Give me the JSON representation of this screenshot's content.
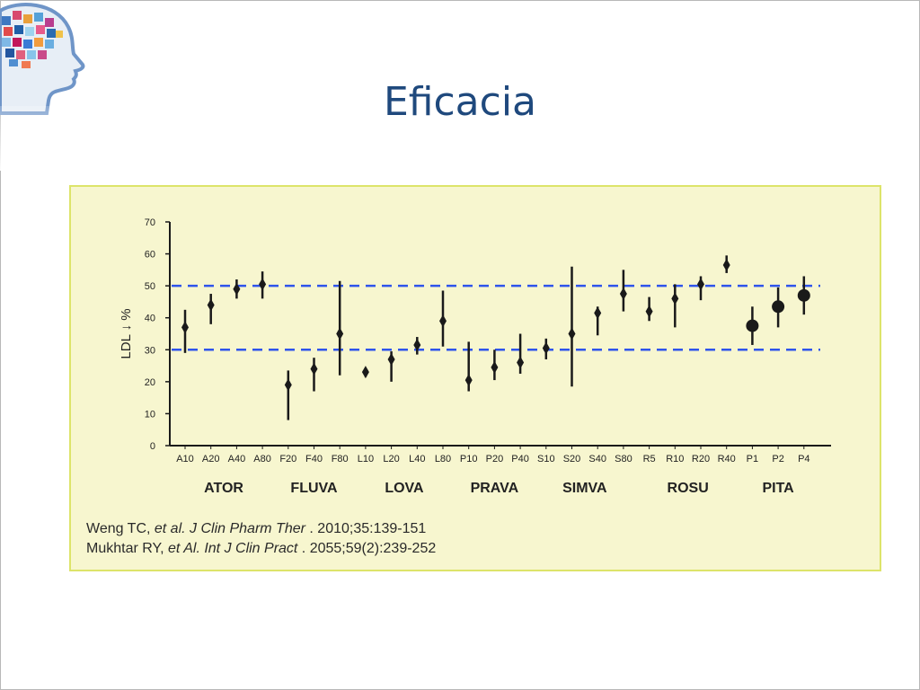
{
  "slide": {
    "title": "Eficacia",
    "logo_icon": "brain-profile-logo"
  },
  "references": [
    {
      "before": "Weng TC, ",
      "italic": "et al. J Clin Pharm Ther",
      "after": " . 2010;35:139-151"
    },
    {
      "before": "Mukhtar RY, ",
      "italic": "et Al. Int J Clin Pract",
      "after": " . 2055;59(2):239-252"
    }
  ],
  "colors": {
    "panel_background": "#f7f6cf",
    "panel_border": "#dde46a",
    "reference_lines": "#2f54eb",
    "markers": "#1a1a1a",
    "title": "#1f497d"
  },
  "chart_data": {
    "type": "scatter",
    "subtype": "point-with-range",
    "title": "",
    "xlabel": "",
    "ylabel": "LDL ↓ %",
    "ylim": [
      0,
      70
    ],
    "yticks": [
      0,
      10,
      20,
      30,
      40,
      50,
      60,
      70
    ],
    "grid": false,
    "reference_lines": [
      30,
      50
    ],
    "categories": [
      "A10",
      "A20",
      "A40",
      "A80",
      "F20",
      "F40",
      "F80",
      "L10",
      "L20",
      "L40",
      "L80",
      "P10",
      "P20",
      "P40",
      "S10",
      "S20",
      "S40",
      "S80",
      "R5",
      "R10",
      "R20",
      "R40",
      "P1",
      "P2",
      "P4"
    ],
    "values": [
      37,
      44,
      49,
      50.5,
      19,
      24,
      35,
      23,
      27,
      31.5,
      39,
      20.5,
      24.5,
      26,
      30.5,
      35,
      41.5,
      47.5,
      42,
      46,
      50.5,
      56.5,
      37.5,
      43.5,
      47
    ],
    "low": [
      29,
      38,
      46,
      46,
      8,
      17,
      22,
      21.5,
      20,
      28.5,
      31,
      17,
      20.5,
      22.5,
      27,
      18.5,
      34.5,
      42,
      39,
      37,
      45.5,
      54,
      31.5,
      37,
      41
    ],
    "high": [
      42.5,
      47.5,
      52,
      54.5,
      23.5,
      27.5,
      51.5,
      24,
      29.5,
      34,
      48.5,
      32.5,
      30,
      35,
      33.5,
      56,
      43.5,
      55,
      46.5,
      50.5,
      53,
      59.5,
      43.5,
      49.5,
      53
    ],
    "marker_size": [
      "diamond",
      "diamond",
      "diamond",
      "diamond",
      "diamond",
      "diamond",
      "diamond",
      "diamond",
      "diamond",
      "diamond",
      "diamond",
      "diamond",
      "diamond",
      "diamond",
      "diamond",
      "diamond",
      "diamond",
      "diamond",
      "diamond",
      "diamond",
      "diamond",
      "diamond",
      "circle",
      "circle",
      "circle"
    ],
    "groups": [
      {
        "label": "ATOR",
        "start": 0,
        "end": 3
      },
      {
        "label": "FLUVA",
        "start": 4,
        "end": 6
      },
      {
        "label": "LOVA",
        "start": 7,
        "end": 10
      },
      {
        "label": "PRAVA",
        "start": 11,
        "end": 13
      },
      {
        "label": "SIMVA",
        "start": 14,
        "end": 17
      },
      {
        "label": "ROSU",
        "start": 18,
        "end": 21
      },
      {
        "label": "PITA",
        "start": 22,
        "end": 24
      }
    ]
  }
}
